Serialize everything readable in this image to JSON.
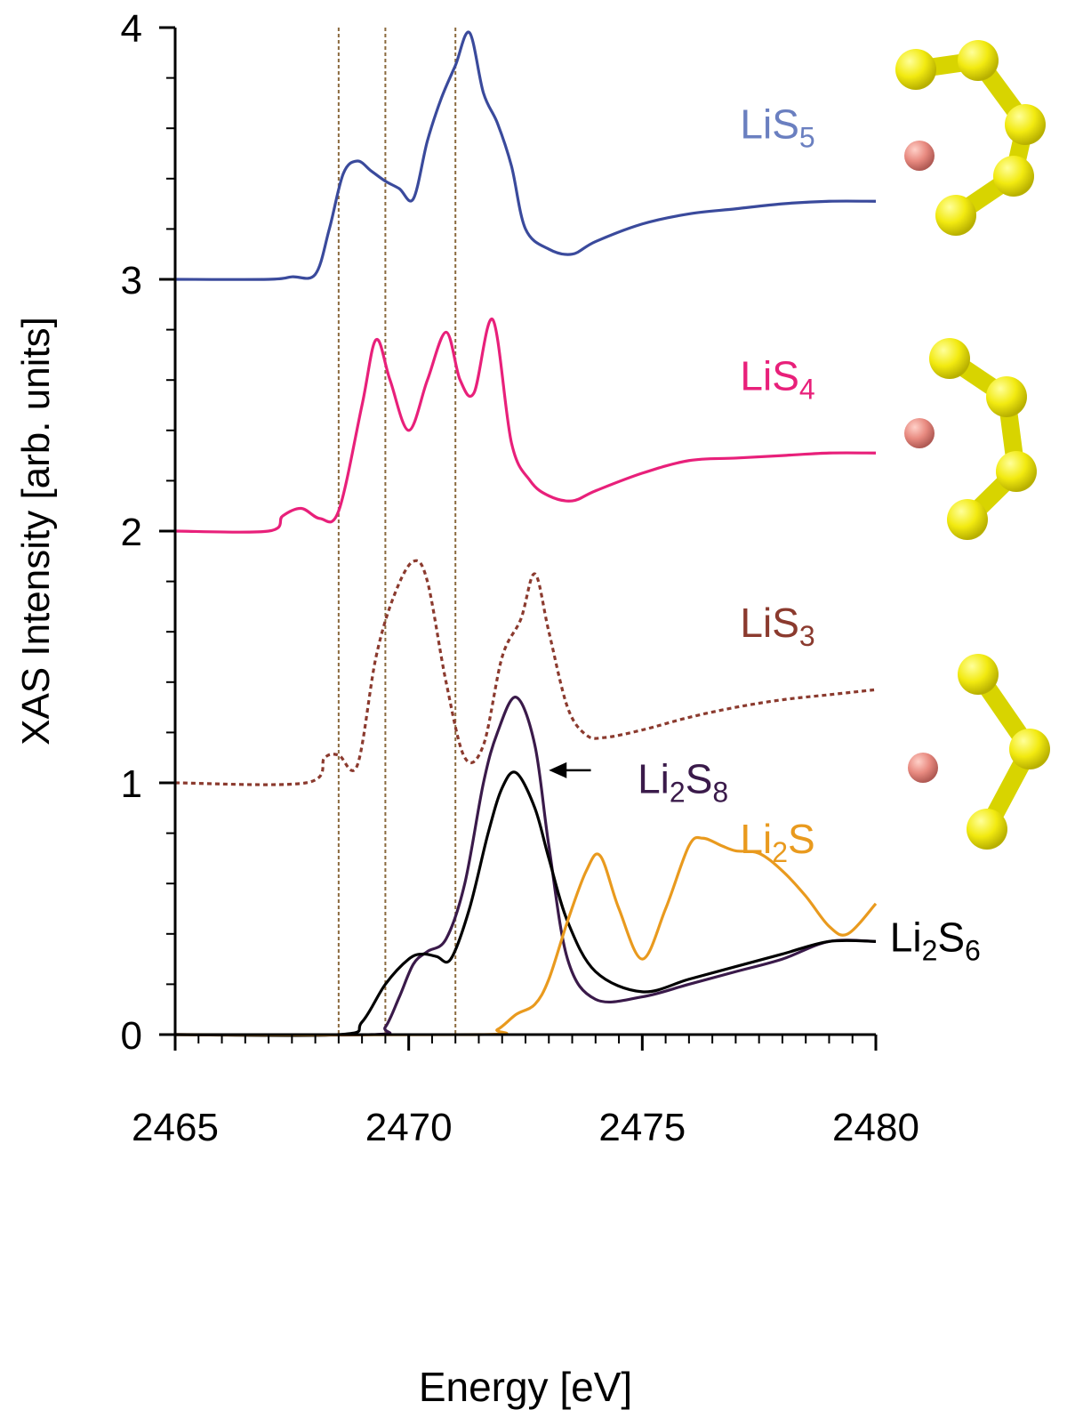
{
  "chart_data": {
    "type": "line",
    "xlabel": "Energy [eV]",
    "ylabel": "XAS Intensity [arb. units]",
    "xlim": [
      2465,
      2480
    ],
    "ylim": [
      0,
      4
    ],
    "xticks": [
      "2465",
      "2470",
      "2475",
      "2480"
    ],
    "yticks": [
      "0",
      "1",
      "2",
      "3",
      "4"
    ],
    "vlines": [
      2468.5,
      2469.5,
      2471.0
    ],
    "vline_color": "#8b6a3e",
    "legend": "inline labels at right of each curve",
    "annotation": {
      "text": "Li₂S₈",
      "target": "Li₂S₈ peak (arrow)"
    },
    "series": [
      {
        "name": "LiS₅",
        "color": "#3a4a9c",
        "label_color": "#6a7fc0",
        "dash": false,
        "x": [
          2465,
          2467,
          2467.5,
          2468.0,
          2468.3,
          2468.6,
          2468.9,
          2469.2,
          2469.5,
          2469.8,
          2470.1,
          2470.4,
          2470.7,
          2471.0,
          2471.3,
          2471.6,
          2471.9,
          2472.2,
          2472.5,
          2473.0,
          2473.5,
          2474.0,
          2475.0,
          2476.0,
          2477.0,
          2478.0,
          2479.0,
          2480.0
        ],
        "y": [
          3.0,
          3.0,
          3.01,
          3.02,
          3.2,
          3.42,
          3.47,
          3.43,
          3.39,
          3.36,
          3.32,
          3.55,
          3.72,
          3.85,
          3.98,
          3.74,
          3.62,
          3.45,
          3.2,
          3.12,
          3.1,
          3.15,
          3.22,
          3.26,
          3.28,
          3.3,
          3.31,
          3.31
        ]
      },
      {
        "name": "LiS₄",
        "color": "#e8207a",
        "label_color": "#e8207a",
        "dash": false,
        "x": [
          2465,
          2467,
          2467.3,
          2467.7,
          2468.1,
          2468.5,
          2469.0,
          2469.3,
          2469.6,
          2470.0,
          2470.4,
          2470.8,
          2471.1,
          2471.4,
          2471.8,
          2472.2,
          2472.6,
          2473.0,
          2473.5,
          2474.0,
          2475.0,
          2476.0,
          2477.0,
          2478.0,
          2479.0,
          2480.0
        ],
        "y": [
          2.0,
          2.0,
          2.06,
          2.09,
          2.05,
          2.08,
          2.5,
          2.76,
          2.6,
          2.4,
          2.6,
          2.79,
          2.6,
          2.55,
          2.84,
          2.35,
          2.2,
          2.14,
          2.12,
          2.16,
          2.23,
          2.28,
          2.29,
          2.3,
          2.31,
          2.31
        ]
      },
      {
        "name": "LiS₃",
        "color": "#8b3a2e",
        "label_color": "#8b3a2e",
        "dash": true,
        "x": [
          2465,
          2467.8,
          2468.2,
          2468.5,
          2468.9,
          2469.3,
          2469.7,
          2470.1,
          2470.4,
          2470.8,
          2471.2,
          2471.6,
          2472.0,
          2472.4,
          2472.7,
          2473.0,
          2473.4,
          2473.8,
          2474.2,
          2475.0,
          2476.0,
          2477.0,
          2478.0,
          2479.0,
          2480.0
        ],
        "y": [
          1.0,
          1.0,
          1.1,
          1.11,
          1.07,
          1.5,
          1.75,
          1.88,
          1.8,
          1.4,
          1.1,
          1.15,
          1.5,
          1.65,
          1.83,
          1.6,
          1.3,
          1.19,
          1.18,
          1.21,
          1.26,
          1.3,
          1.33,
          1.35,
          1.37
        ]
      },
      {
        "name": "Li₂S₈",
        "color": "#3a1a4a",
        "label_color": "#3a1a4a",
        "dash": false,
        "x": [
          2465,
          2469.2,
          2469.5,
          2469.8,
          2470.1,
          2470.4,
          2470.8,
          2471.2,
          2471.6,
          2471.9,
          2472.3,
          2472.7,
          2473.0,
          2473.4,
          2474.0,
          2475.0,
          2476.0,
          2477.0,
          2478.0,
          2479.0,
          2480.0
        ],
        "y": [
          0.0,
          0.0,
          0.03,
          0.15,
          0.28,
          0.33,
          0.38,
          0.6,
          1.0,
          1.2,
          1.34,
          1.15,
          0.75,
          0.3,
          0.14,
          0.15,
          0.2,
          0.25,
          0.3,
          0.37,
          0.37
        ]
      },
      {
        "name": "Li₂S₆",
        "color": "#000000",
        "label_color": "#000000",
        "dash": false,
        "x": [
          2465,
          2468.5,
          2469.0,
          2469.5,
          2470.0,
          2470.3,
          2470.6,
          2470.9,
          2471.3,
          2471.7,
          2472.0,
          2472.3,
          2472.7,
          2473.0,
          2473.4,
          2474.0,
          2475.0,
          2476.0,
          2477.0,
          2478.0,
          2479.0,
          2480.0
        ],
        "y": [
          0.0,
          0.0,
          0.05,
          0.2,
          0.3,
          0.32,
          0.31,
          0.3,
          0.5,
          0.8,
          0.98,
          1.04,
          0.9,
          0.7,
          0.45,
          0.25,
          0.17,
          0.22,
          0.27,
          0.32,
          0.37,
          0.37
        ]
      },
      {
        "name": "Li₂S",
        "color": "#e99a1e",
        "label_color": "#e99a1e",
        "dash": false,
        "x": [
          2465,
          2471.5,
          2471.9,
          2472.3,
          2472.7,
          2473.0,
          2473.4,
          2473.8,
          2474.1,
          2474.5,
          2475.0,
          2475.5,
          2476.0,
          2476.3,
          2476.7,
          2477.0,
          2477.5,
          2478.0,
          2478.5,
          2479.0,
          2479.4,
          2480.0
        ],
        "y": [
          0.0,
          0.0,
          0.02,
          0.08,
          0.12,
          0.22,
          0.45,
          0.65,
          0.71,
          0.5,
          0.3,
          0.5,
          0.75,
          0.78,
          0.75,
          0.73,
          0.72,
          0.65,
          0.55,
          0.43,
          0.4,
          0.52
        ]
      }
    ]
  }
}
